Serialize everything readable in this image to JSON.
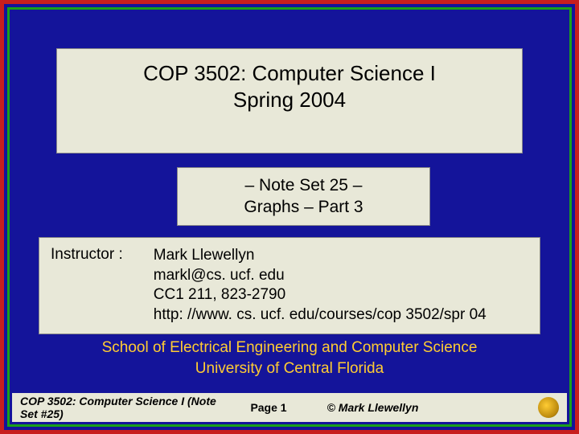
{
  "colors": {
    "outer_border": "#c81e1e",
    "inner_border": "#1aa01a",
    "slide_background": "#14149a",
    "box_background": "#e8e8d8",
    "box_border": "#888888",
    "school_text": "#ffcc33",
    "logo_gold": "#ffcc33",
    "logo_dark": "#b8860b"
  },
  "title": {
    "line1": "COP 3502: Computer Science I",
    "line2": "Spring 2004"
  },
  "subtitle": {
    "line1": "– Note Set 25  –",
    "line2": "Graphs – Part 3"
  },
  "instructor": {
    "label": "Instructor :",
    "name": "Mark Llewellyn",
    "email": "markl@cs. ucf. edu",
    "office": "CC1 211, 823-2790",
    "url": "http: //www. cs. ucf. edu/courses/cop 3502/spr 04"
  },
  "school": {
    "line1": "School of Electrical Engineering and Computer Science",
    "line2": "University of Central Florida"
  },
  "footer": {
    "left": "COP 3502: Computer Science I  (Note Set #25)",
    "center": "Page 1",
    "right": "© Mark Llewellyn"
  }
}
